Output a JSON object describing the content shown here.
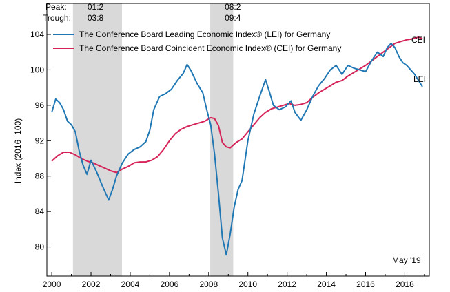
{
  "chart_data": {
    "type": "line",
    "ylabel": "Index (2016=100)",
    "xlabel": "",
    "xlim": [
      1999.75,
      2019.25
    ],
    "ylim": [
      76.7,
      107.5
    ],
    "yticks": [
      80,
      84,
      88,
      92,
      96,
      100,
      104
    ],
    "ytick_labels": [
      "80",
      "84",
      "88",
      "92",
      "96",
      "100",
      "104"
    ],
    "xticks": [
      2000,
      2002,
      2004,
      2006,
      2008,
      2010,
      2012,
      2014,
      2016,
      2018
    ],
    "xtick_labels": [
      "2000",
      "2002",
      "2004",
      "2006",
      "2008",
      "2010",
      "2012",
      "2014",
      "2016",
      "2018"
    ],
    "grid": false,
    "legend_placement": "top-left",
    "note": "May '19",
    "peak_label": "Peak:",
    "trough_label": "Trough:",
    "recessions": [
      {
        "peak": "01:2",
        "trough": "03:8",
        "start": 2001.08,
        "end": 2003.58
      },
      {
        "peak": "08:2",
        "trough": "09:4",
        "start": 2008.08,
        "end": 2009.25
      }
    ],
    "series": [
      {
        "name": "The Conference Board Leading Economic Index® (LEI) for Germany",
        "end_label": "LEI",
        "color": "#1f77b4",
        "x": [
          2000.0,
          2000.2,
          2000.4,
          2000.6,
          2000.8,
          2001.0,
          2001.2,
          2001.4,
          2001.6,
          2001.8,
          2002.0,
          2002.3,
          2002.6,
          2002.9,
          2003.1,
          2003.3,
          2003.6,
          2003.9,
          2004.2,
          2004.5,
          2004.8,
          2005.0,
          2005.2,
          2005.5,
          2005.8,
          2006.1,
          2006.4,
          2006.7,
          2006.9,
          2007.1,
          2007.4,
          2007.7,
          2007.9,
          2008.1,
          2008.3,
          2008.5,
          2008.7,
          2008.9,
          2009.1,
          2009.3,
          2009.5,
          2009.7,
          2010.0,
          2010.3,
          2010.6,
          2010.9,
          2011.1,
          2011.3,
          2011.6,
          2011.9,
          2012.2,
          2012.4,
          2012.7,
          2013.0,
          2013.3,
          2013.6,
          2013.9,
          2014.2,
          2014.5,
          2014.8,
          2015.1,
          2015.4,
          2015.7,
          2016.0,
          2016.3,
          2016.6,
          2016.9,
          2017.1,
          2017.3,
          2017.5,
          2017.7,
          2017.9,
          2018.1,
          2018.3,
          2018.5,
          2018.7,
          2018.9
        ],
        "values": [
          95.2,
          96.7,
          96.3,
          95.5,
          94.2,
          93.8,
          93.0,
          90.8,
          89.2,
          88.2,
          89.8,
          88.4,
          86.8,
          85.3,
          86.5,
          88.0,
          89.5,
          90.5,
          91.0,
          91.3,
          91.9,
          93.2,
          95.5,
          97.0,
          97.3,
          97.8,
          98.8,
          99.6,
          100.6,
          99.9,
          98.5,
          97.4,
          95.5,
          93.8,
          90.5,
          86.0,
          81.0,
          79.1,
          81.5,
          84.5,
          86.5,
          87.5,
          92.0,
          95.0,
          97.0,
          98.9,
          97.5,
          96.0,
          95.5,
          95.8,
          96.5,
          95.2,
          94.3,
          95.5,
          97.0,
          98.2,
          99.0,
          100.0,
          100.5,
          99.5,
          100.5,
          100.2,
          100.0,
          99.8,
          101.0,
          102.0,
          101.5,
          102.5,
          103.0,
          102.5,
          101.5,
          100.8,
          100.5,
          100.0,
          99.5,
          98.8,
          98.1
        ]
      },
      {
        "name": "The Conference Board Coincident Economic Index® (CEI) for Germany",
        "end_label": "CEI",
        "color": "#d6245a",
        "x": [
          2000.0,
          2000.3,
          2000.6,
          2000.9,
          2001.2,
          2001.5,
          2001.8,
          2002.1,
          2002.4,
          2002.7,
          2003.0,
          2003.3,
          2003.6,
          2003.9,
          2004.2,
          2004.5,
          2004.8,
          2005.1,
          2005.4,
          2005.7,
          2006.0,
          2006.3,
          2006.6,
          2006.9,
          2007.2,
          2007.5,
          2007.8,
          2008.1,
          2008.3,
          2008.5,
          2008.7,
          2008.9,
          2009.1,
          2009.4,
          2009.7,
          2010.0,
          2010.3,
          2010.6,
          2010.9,
          2011.2,
          2011.5,
          2011.8,
          2012.1,
          2012.4,
          2012.7,
          2013.0,
          2013.3,
          2013.6,
          2013.9,
          2014.2,
          2014.5,
          2014.8,
          2015.1,
          2015.4,
          2015.7,
          2016.0,
          2016.3,
          2016.6,
          2016.9,
          2017.2,
          2017.5,
          2017.8,
          2018.1,
          2018.4,
          2018.7,
          2018.9
        ],
        "values": [
          89.7,
          90.3,
          90.7,
          90.7,
          90.4,
          90.0,
          89.7,
          89.5,
          89.2,
          88.9,
          88.6,
          88.4,
          88.8,
          89.1,
          89.5,
          89.6,
          89.6,
          89.8,
          90.2,
          91.0,
          92.0,
          92.8,
          93.3,
          93.6,
          93.8,
          94.0,
          94.2,
          94.6,
          94.5,
          93.7,
          91.8,
          91.3,
          91.2,
          91.8,
          92.2,
          93.0,
          93.8,
          94.6,
          95.2,
          95.6,
          95.8,
          96.0,
          96.2,
          96.0,
          96.1,
          96.3,
          96.9,
          97.4,
          97.8,
          98.2,
          98.6,
          98.8,
          99.3,
          99.7,
          100.1,
          100.5,
          101.0,
          101.5,
          102.0,
          102.5,
          103.0,
          103.2,
          103.4,
          103.5,
          103.7,
          103.5
        ]
      }
    ]
  }
}
